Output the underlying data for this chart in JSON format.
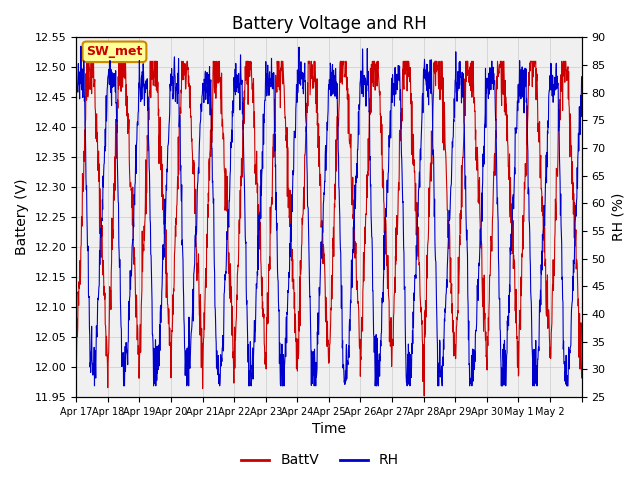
{
  "title": "Battery Voltage and RH",
  "xlabel": "Time",
  "ylabel_left": "Battery (V)",
  "ylabel_right": "RH (%)",
  "ylim_left": [
    11.95,
    12.55
  ],
  "ylim_right": [
    25,
    90
  ],
  "yticks_left": [
    11.95,
    12.0,
    12.05,
    12.1,
    12.15,
    12.2,
    12.25,
    12.3,
    12.35,
    12.4,
    12.45,
    12.5,
    12.55
  ],
  "yticks_right": [
    25,
    30,
    35,
    40,
    45,
    50,
    55,
    60,
    65,
    70,
    75,
    80,
    85,
    90
  ],
  "color_batt": "#cc0000",
  "color_rh": "#0000cc",
  "legend_label_batt": "BattV",
  "legend_label_rh": "RH",
  "annotation_text": "SW_met",
  "annotation_color": "#cc0000",
  "annotation_bg": "#ffff99",
  "grid_color": "#cccccc",
  "n_points": 1600,
  "xtick_positions": [
    0,
    1,
    2,
    3,
    4,
    5,
    6,
    7,
    8,
    9,
    10,
    11,
    12,
    13,
    14,
    15,
    16
  ],
  "xtick_labels": [
    "Apr 17",
    "Apr 18",
    "Apr 19",
    "Apr 20",
    "Apr 21",
    "Apr 22",
    "Apr 23",
    "Apr 24",
    "Apr 25",
    "Apr 26",
    "Apr 27",
    "Apr 28",
    "Apr 29",
    "Apr 30",
    "May 1",
    "May 2",
    ""
  ]
}
